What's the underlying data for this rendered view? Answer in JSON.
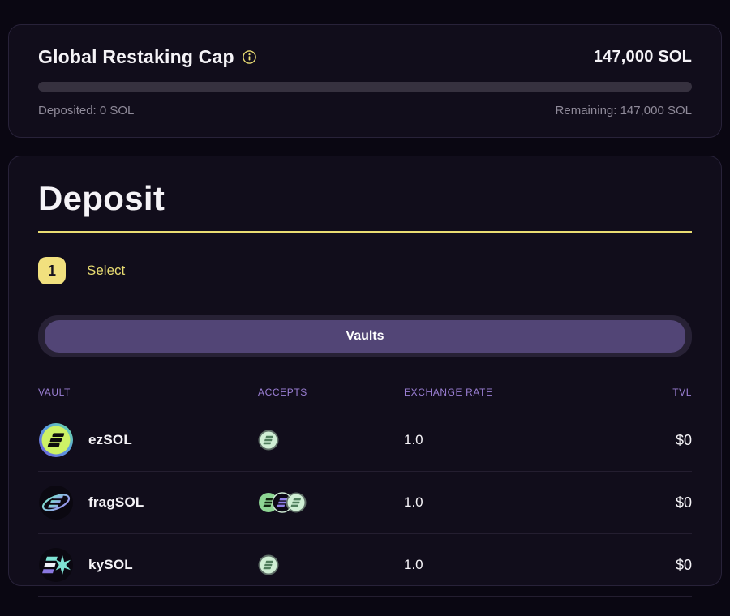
{
  "colors": {
    "accent_yellow": "#e9dc72",
    "header_purple": "#9b7fd4",
    "tab_pill_purple": "#524576",
    "page_bg": "#0a0712",
    "card_bg": "#110d1b"
  },
  "global_cap": {
    "title": "Global Restaking Cap",
    "total": "147,000 SOL",
    "deposited": "Deposited: 0 SOL",
    "remaining": "Remaining: 147,000 SOL",
    "progress_percent": 0
  },
  "deposit": {
    "title": "Deposit",
    "step_number": "1",
    "step_label": "Select",
    "tab_label": "Vaults"
  },
  "vault_table": {
    "headers": [
      "VAULT",
      "ACCEPTS",
      "EXCHANGE RATE",
      "TVL"
    ],
    "rows": [
      {
        "name": "ezSOL",
        "icon": "ezsol",
        "accepts": [
          "mint"
        ],
        "exchange_rate": "1.0",
        "tvl": "$0"
      },
      {
        "name": "fragSOL",
        "icon": "fragsol",
        "accepts": [
          "green",
          "dark",
          "mint"
        ],
        "exchange_rate": "1.0",
        "tvl": "$0"
      },
      {
        "name": "kySOL",
        "icon": "kysol",
        "accepts": [
          "mint"
        ],
        "exchange_rate": "1.0",
        "tvl": "$0"
      }
    ]
  }
}
